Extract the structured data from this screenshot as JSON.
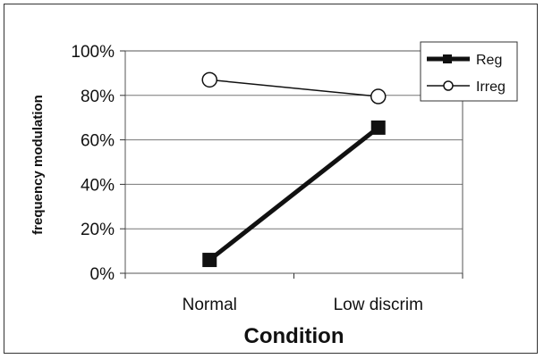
{
  "chart_data": {
    "type": "line",
    "categories": [
      "Normal",
      "Low discrim"
    ],
    "series": [
      {
        "name": "Reg",
        "values": [
          0.06,
          0.655
        ],
        "marker": "filled-square",
        "color": "#111111",
        "stroke": "thick"
      },
      {
        "name": "Irreg",
        "values": [
          0.87,
          0.795
        ],
        "marker": "open-circle",
        "color": "#111111",
        "stroke": "thin"
      }
    ],
    "title": "",
    "xlabel": "Condition",
    "ylabel": "frequency modulation",
    "ylim": [
      0,
      1
    ],
    "yticks": [
      0,
      0.2,
      0.4,
      0.6,
      0.8,
      1.0
    ],
    "ytick_labels": [
      "0%",
      "20%",
      "40%",
      "60%",
      "80%",
      "100%"
    ],
    "grid": "horizontal",
    "legend_position": "top-right"
  }
}
